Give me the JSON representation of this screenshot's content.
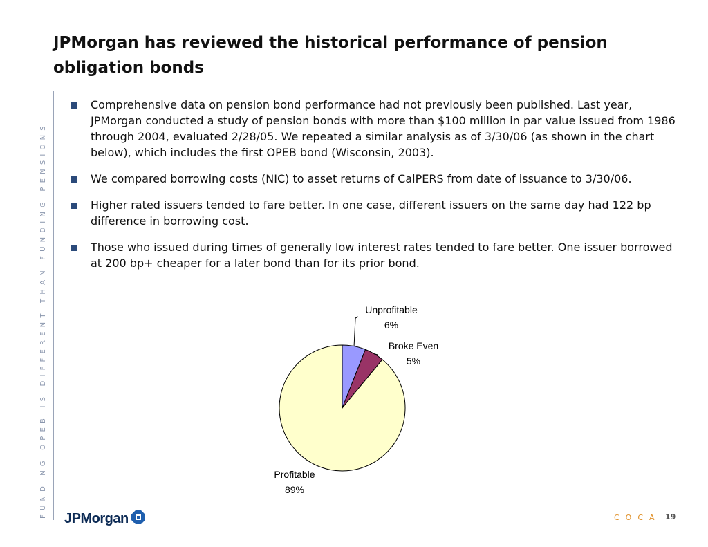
{
  "slide": {
    "title": "JPMorgan has reviewed the historical performance of pension obligation bonds",
    "side_caption": "FUNDING OPEB IS DIFFERENT THAN FUNDING PENSIONS",
    "bullets": [
      "Comprehensive data on pension bond performance had not previously been published. Last year, JPMorgan conducted a study of pension bonds with more than $100 million in par value issued from 1986 through 2004, evaluated 2/28/05.  We repeated a similar analysis as of 3/30/06 (as shown in the chart below), which includes the first OPEB bond (Wisconsin, 2003).",
      "We compared borrowing costs (NIC) to asset returns of CalPERS from date of issuance to 3/30/06.",
      "Higher rated issuers tended to fare better.  In one case, different issuers on the same day had 122 bp difference in borrowing cost.",
      "Those who issued during times of generally low interest rates tended to fare better.  One issuer borrowed at 200 bp+ cheaper for a later bond than for its prior bond."
    ],
    "footer": {
      "logo_text": "JPMorgan",
      "logo_icon": "jpmorgan-octagon-icon",
      "code": "COCA",
      "page": "19"
    }
  },
  "chart_data": {
    "type": "pie",
    "slices": [
      {
        "label": "Unprofitable",
        "pct_label": "6%",
        "value": 6,
        "color": "#9999ff"
      },
      {
        "label": "Broke Even",
        "pct_label": "5%",
        "value": 5,
        "color": "#993366"
      },
      {
        "label": "Profitable",
        "pct_label": "89%",
        "value": 89,
        "color": "#ffffcc"
      }
    ]
  }
}
